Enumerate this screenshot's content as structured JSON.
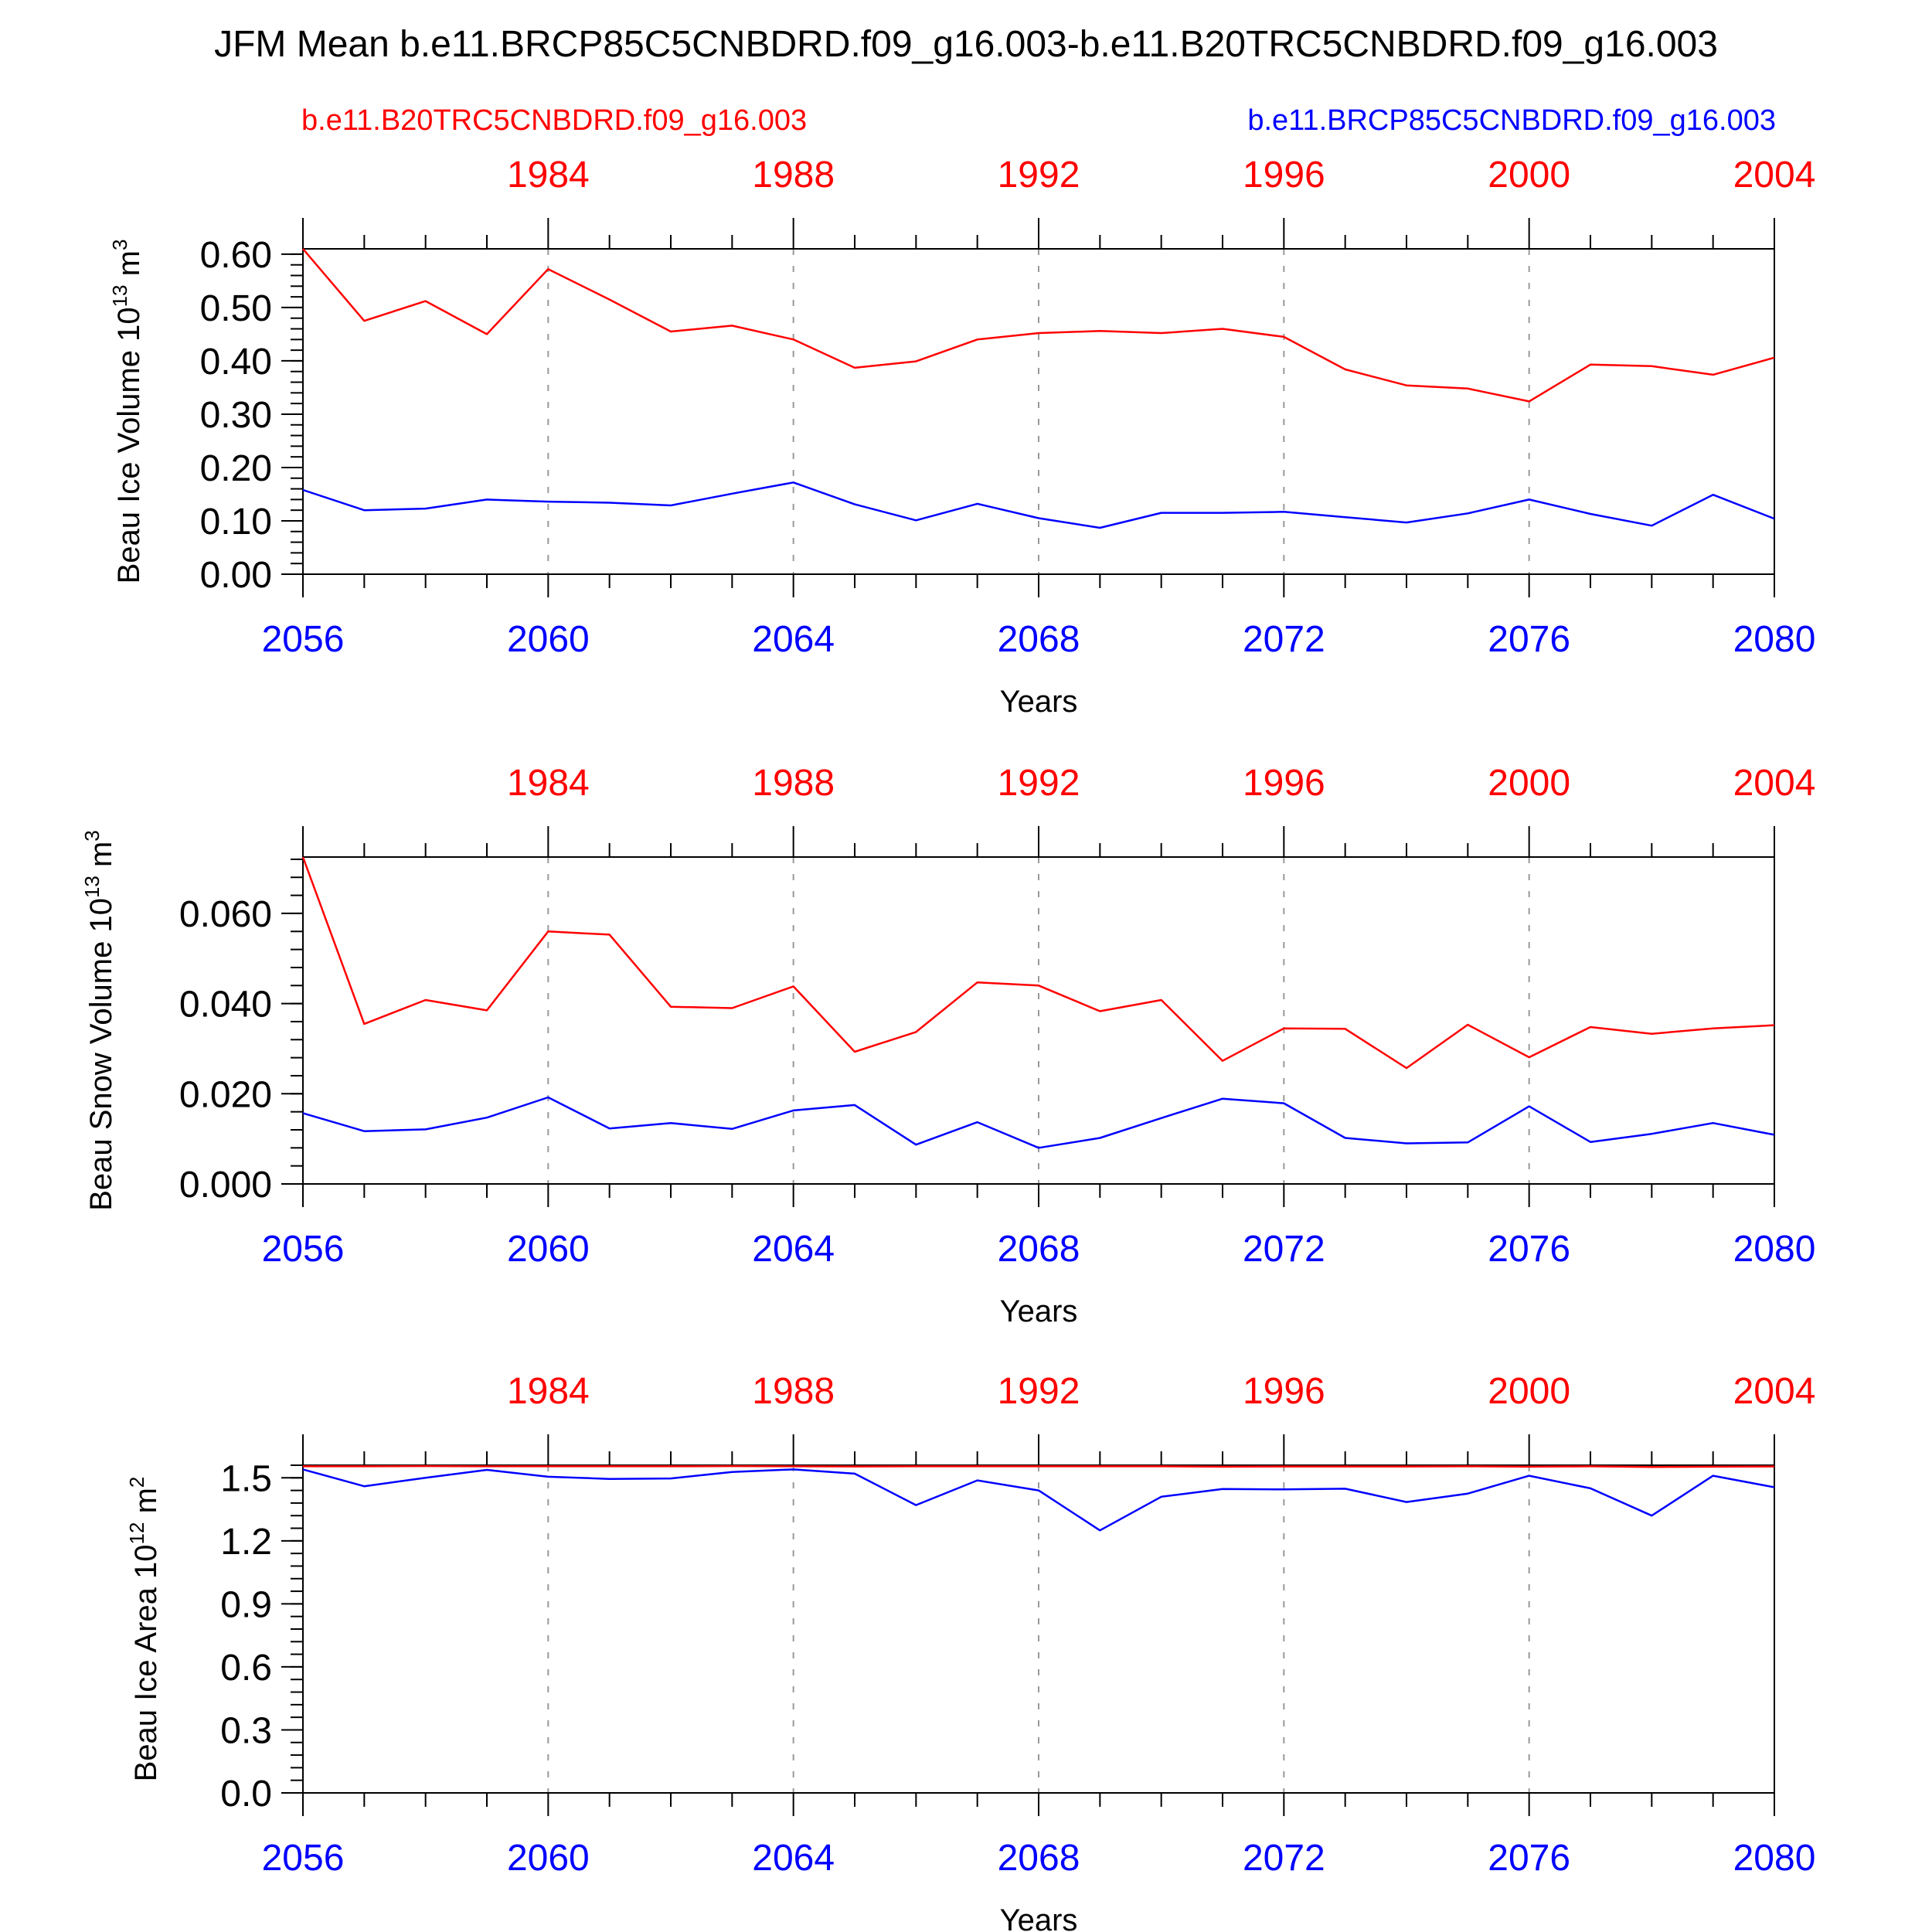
{
  "colors": {
    "control": "#ff0000",
    "future": "#0000ff",
    "axis": "#000000",
    "grid": "#999999"
  },
  "header": {
    "title": "JFM Mean b.e11.BRCP85C5CNBDRD.f09_g16.003-b.e11.B20TRC5CNBDRD.f09_g16.003",
    "legend_left": "b.e11.B20TRC5CNBDRD.f09_g16.003",
    "legend_right": "b.e11.BRCP85C5CNBDRD.f09_g16.003"
  },
  "chart_data": [
    {
      "type": "line",
      "ylabel": "Beau Ice Volume 10",
      "ylabel_exp": "13",
      "ylabel_unit": " m",
      "ylabel_unit_exp": "3",
      "xlabel": "Years",
      "ylim": [
        0,
        0.61
      ],
      "yticks": [
        "0.00",
        "0.10",
        "0.20",
        "0.30",
        "0.40",
        "0.50",
        "0.60"
      ],
      "ytick_values": [
        0,
        0.1,
        0.2,
        0.3,
        0.4,
        0.5,
        0.6
      ],
      "yminor": 0.02,
      "bottom_ticks": [
        "2056",
        "2060",
        "2064",
        "2068",
        "2072",
        "2076",
        "2080"
      ],
      "top_ticks": [
        "1984",
        "1988",
        "1992",
        "1996",
        "2000",
        "2004"
      ],
      "x": [
        2056,
        2057,
        2058,
        2059,
        2060,
        2061,
        2062,
        2063,
        2064,
        2065,
        2066,
        2067,
        2068,
        2069,
        2070,
        2071,
        2072,
        2073,
        2074,
        2075,
        2076,
        2077,
        2078,
        2079,
        2080
      ],
      "series": [
        {
          "name": "b.e11.B20TRC5CNBDRD.f09_g16.003",
          "values": [
            0.61,
            0.475,
            0.512,
            0.45,
            0.572,
            0.515,
            0.455,
            0.466,
            0.44,
            0.387,
            0.399,
            0.44,
            0.452,
            0.456,
            0.452,
            0.46,
            0.445,
            0.384,
            0.354,
            0.348,
            0.324,
            0.393,
            0.39,
            0.374,
            0.406
          ]
        },
        {
          "name": "b.e11.BRCP85C5CNBDRD.f09_g16.003",
          "values": [
            0.158,
            0.12,
            0.123,
            0.14,
            0.136,
            0.134,
            0.129,
            0.151,
            0.172,
            0.131,
            0.101,
            0.132,
            0.105,
            0.087,
            0.115,
            0.115,
            0.117,
            0.107,
            0.097,
            0.114,
            0.14,
            0.113,
            0.091,
            0.149,
            0.104
          ]
        }
      ]
    },
    {
      "type": "line",
      "ylabel": "Beau Snow Volume 10",
      "ylabel_exp": "13",
      "ylabel_unit": " m",
      "ylabel_unit_exp": "3",
      "xlabel": "Years",
      "ylim": [
        0,
        0.0725
      ],
      "yticks": [
        "0.000",
        "0.020",
        "0.040",
        "0.060"
      ],
      "ytick_values": [
        0,
        0.02,
        0.04,
        0.06
      ],
      "yminor": 0.004,
      "bottom_ticks": [
        "2056",
        "2060",
        "2064",
        "2068",
        "2072",
        "2076",
        "2080"
      ],
      "top_ticks": [
        "1984",
        "1988",
        "1992",
        "1996",
        "2000",
        "2004"
      ],
      "x": [
        2056,
        2057,
        2058,
        2059,
        2060,
        2061,
        2062,
        2063,
        2064,
        2065,
        2066,
        2067,
        2068,
        2069,
        2070,
        2071,
        2072,
        2073,
        2074,
        2075,
        2076,
        2077,
        2078,
        2079,
        2080
      ],
      "series": [
        {
          "name": "b.e11.B20TRC5CNBDRD.f09_g16.003",
          "values": [
            0.0725,
            0.0355,
            0.0408,
            0.0385,
            0.056,
            0.0553,
            0.0393,
            0.039,
            0.0438,
            0.0293,
            0.0337,
            0.0447,
            0.044,
            0.0383,
            0.0408,
            0.0273,
            0.0345,
            0.0344,
            0.0257,
            0.0353,
            0.0281,
            0.0348,
            0.0333,
            0.0345,
            0.0352
          ]
        },
        {
          "name": "b.e11.BRCP85C5CNBDRD.f09_g16.003",
          "values": [
            0.0157,
            0.0117,
            0.0121,
            0.0147,
            0.0192,
            0.0123,
            0.0135,
            0.0122,
            0.0163,
            0.0175,
            0.0087,
            0.0137,
            0.008,
            0.0102,
            0.0146,
            0.0189,
            0.0179,
            0.0102,
            0.009,
            0.0092,
            0.0172,
            0.0093,
            0.0111,
            0.0135,
            0.0109
          ]
        }
      ]
    },
    {
      "type": "line",
      "ylabel": "Beau Ice Area 10",
      "ylabel_exp": "12",
      "ylabel_unit": " m",
      "ylabel_unit_exp": "2",
      "xlabel": "Years",
      "ylim": [
        0,
        1.56
      ],
      "yticks": [
        "0.0",
        "0.3",
        "0.6",
        "0.9",
        "1.2",
        "1.5"
      ],
      "ytick_values": [
        0,
        0.3,
        0.6,
        0.9,
        1.2,
        1.5
      ],
      "yminor": 0.06,
      "bottom_ticks": [
        "2056",
        "2060",
        "2064",
        "2068",
        "2072",
        "2076",
        "2080"
      ],
      "top_ticks": [
        "1984",
        "1988",
        "1992",
        "1996",
        "2000",
        "2004"
      ],
      "x": [
        2056,
        2057,
        2058,
        2059,
        2060,
        2061,
        2062,
        2063,
        2064,
        2065,
        2066,
        2067,
        2068,
        2069,
        2070,
        2071,
        2072,
        2073,
        2074,
        2075,
        2076,
        2077,
        2078,
        2079,
        2080
      ],
      "series": [
        {
          "name": "b.e11.B20TRC5CNBDRD.f09_g16.003",
          "values": [
            1.555,
            1.555,
            1.556,
            1.555,
            1.555,
            1.555,
            1.555,
            1.556,
            1.555,
            1.554,
            1.555,
            1.555,
            1.555,
            1.555,
            1.555,
            1.553,
            1.554,
            1.554,
            1.554,
            1.555,
            1.553,
            1.555,
            1.552,
            1.553,
            1.554
          ]
        },
        {
          "name": "b.e11.BRCP85C5CNBDRD.f09_g16.003",
          "values": [
            1.54,
            1.46,
            1.5,
            1.538,
            1.505,
            1.495,
            1.497,
            1.528,
            1.54,
            1.52,
            1.37,
            1.488,
            1.44,
            1.25,
            1.41,
            1.447,
            1.445,
            1.448,
            1.385,
            1.425,
            1.51,
            1.45,
            1.32,
            1.51,
            1.455
          ]
        }
      ]
    }
  ]
}
